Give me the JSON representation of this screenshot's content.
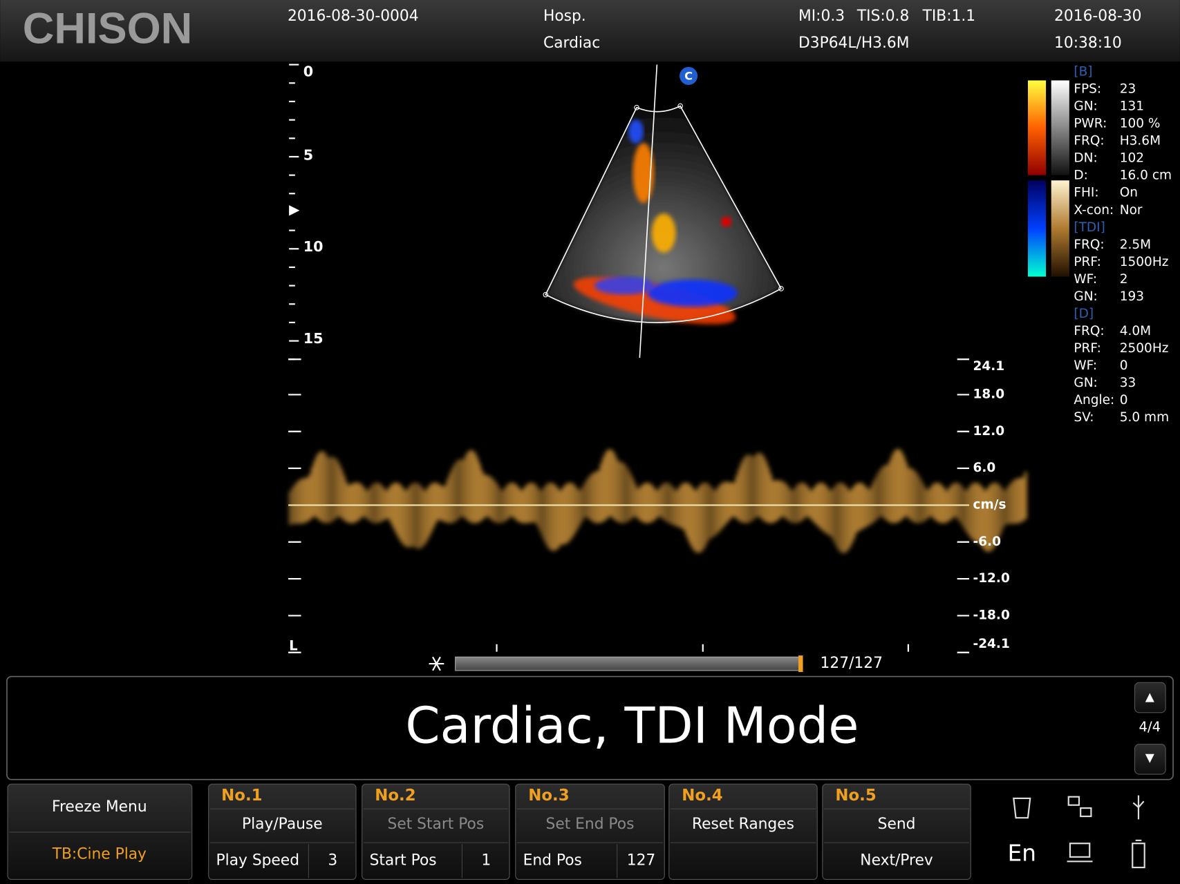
{
  "header": {
    "logo": "CHISON",
    "exam_id": "2016-08-30-0004",
    "hospital": "Hosp.",
    "preset": "Cardiac",
    "mi": "MI:0.3",
    "tis": "TIS:0.8",
    "tib": "TIB:1.1",
    "probe": "D3P64L/H3.6M",
    "date": "2016-08-30",
    "time": "10:38:10"
  },
  "image": {
    "depth_labels": [
      "0",
      "5",
      "10",
      "15"
    ],
    "orientation_marker": "C",
    "depth_end_marker": "L"
  },
  "params": [
    {
      "title": "[B]",
      "rows": [
        [
          "FPS:",
          "23"
        ],
        [
          "GN:",
          "131"
        ],
        [
          "PWR:",
          "100 %"
        ],
        [
          "FRQ:",
          "H3.6M"
        ],
        [
          "DN:",
          "102"
        ],
        [
          "D:",
          "16.0 cm"
        ],
        [
          "FHI:",
          "On"
        ],
        [
          "X-con:",
          "Nor"
        ]
      ]
    },
    {
      "title": "[TDI]",
      "rows": [
        [
          "FRQ:",
          "2.5M"
        ],
        [
          "PRF:",
          "1500Hz"
        ],
        [
          "WF:",
          "2"
        ],
        [
          "GN:",
          "193"
        ]
      ]
    },
    {
      "title": "[D]",
      "rows": [
        [
          "FRQ:",
          "4.0M"
        ],
        [
          "PRF:",
          "2500Hz"
        ],
        [
          "WF:",
          "0"
        ],
        [
          "GN:",
          "33"
        ],
        [
          "Angle:",
          "0"
        ],
        [
          "SV:",
          "5.0 mm"
        ]
      ]
    }
  ],
  "spectrum": {
    "scale_labels": [
      "24.1",
      "18.0",
      "12.0",
      "6.0",
      "cm/s",
      "-6.0",
      "-12.0",
      "-18.0",
      "-24.1"
    ]
  },
  "cine": {
    "counter": "127/127"
  },
  "banner": {
    "title": "Cardiac, TDI Mode",
    "page": "4/4"
  },
  "menu": {
    "title": "Freeze Menu",
    "trackball": "TB:Cine Play"
  },
  "buttons": [
    {
      "number": "No.1",
      "action": "Play/Pause",
      "param": "Play Speed",
      "value": "3"
    },
    {
      "number": "No.2",
      "action": "Set Start Pos",
      "param": "Start Pos",
      "value": "1"
    },
    {
      "number": "No.3",
      "action": "Set End Pos",
      "param": "End Pos",
      "value": "127"
    },
    {
      "number": "No.4",
      "action": "Reset Ranges"
    },
    {
      "number": "No.5",
      "action": "Send",
      "param": "Next/Prev"
    }
  ],
  "status": {
    "language": "En"
  }
}
